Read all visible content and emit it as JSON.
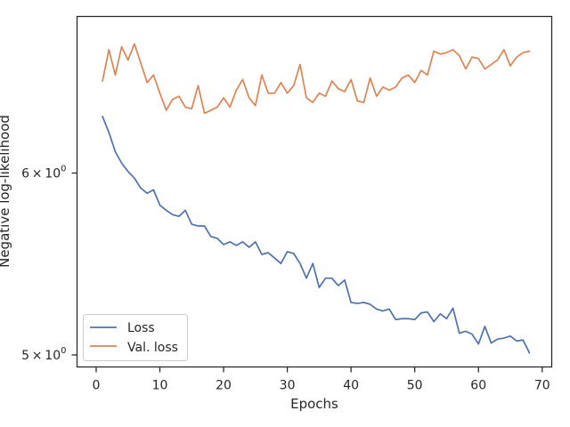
{
  "chart_data": {
    "type": "line",
    "title": "",
    "xlabel": "Epochs",
    "ylabel": "Negative log-likelihood",
    "yscale": "log",
    "xlim": [
      -3,
      71.5
    ],
    "ylim": [
      4.94,
      7.02
    ],
    "xticks": [
      0,
      10,
      20,
      30,
      40,
      50,
      60,
      70
    ],
    "xtick_labels": [
      "0",
      "10",
      "20",
      "30",
      "40",
      "50",
      "60",
      "70"
    ],
    "yticks": [
      5,
      6
    ],
    "ytick_labels": [
      {
        "base": "5",
        "times": "×",
        "sup": "0",
        "mant": "10"
      },
      {
        "base": "6",
        "times": "×",
        "sup": "0",
        "mant": "10"
      }
    ],
    "grid": false,
    "legend_position": "lower-left",
    "x": [
      1,
      2,
      3,
      4,
      5,
      6,
      7,
      8,
      9,
      10,
      11,
      12,
      13,
      14,
      15,
      16,
      17,
      18,
      19,
      20,
      21,
      22,
      23,
      24,
      25,
      26,
      27,
      28,
      29,
      30,
      31,
      32,
      33,
      34,
      35,
      36,
      37,
      38,
      39,
      40,
      41,
      42,
      43,
      44,
      45,
      46,
      47,
      48,
      49,
      50,
      51,
      52,
      53,
      54,
      55,
      56,
      57,
      58,
      59,
      60,
      61,
      62,
      63,
      64,
      65,
      66,
      67,
      68
    ],
    "series": [
      {
        "name": "Loss",
        "color": "#4c72b0",
        "values": [
          6.35,
          6.25,
          6.13,
          6.06,
          6.01,
          5.97,
          5.91,
          5.88,
          5.9,
          5.81,
          5.78,
          5.755,
          5.745,
          5.78,
          5.7,
          5.69,
          5.69,
          5.63,
          5.62,
          5.585,
          5.6,
          5.58,
          5.6,
          5.57,
          5.6,
          5.53,
          5.54,
          5.51,
          5.48,
          5.545,
          5.535,
          5.48,
          5.4,
          5.48,
          5.35,
          5.4,
          5.4,
          5.36,
          5.39,
          5.27,
          5.265,
          5.27,
          5.26,
          5.235,
          5.225,
          5.235,
          5.18,
          5.185,
          5.185,
          5.18,
          5.215,
          5.22,
          5.17,
          5.21,
          5.185,
          5.24,
          5.11,
          5.12,
          5.105,
          5.055,
          5.145,
          5.06,
          5.08,
          5.085,
          5.095,
          5.07,
          5.075,
          5.01
        ]
      },
      {
        "name": "Val. loss",
        "color": "#dd8452",
        "values": [
          6.58,
          6.79,
          6.62,
          6.81,
          6.72,
          6.83,
          6.7,
          6.57,
          6.62,
          6.5,
          6.39,
          6.46,
          6.48,
          6.41,
          6.4,
          6.55,
          6.37,
          6.39,
          6.41,
          6.47,
          6.41,
          6.52,
          6.59,
          6.47,
          6.42,
          6.62,
          6.5,
          6.5,
          6.57,
          6.5,
          6.55,
          6.69,
          6.47,
          6.44,
          6.5,
          6.48,
          6.58,
          6.53,
          6.51,
          6.59,
          6.45,
          6.44,
          6.6,
          6.48,
          6.54,
          6.52,
          6.54,
          6.6,
          6.62,
          6.57,
          6.65,
          6.62,
          6.78,
          6.76,
          6.77,
          6.79,
          6.75,
          6.66,
          6.74,
          6.73,
          6.66,
          6.69,
          6.72,
          6.79,
          6.68,
          6.74,
          6.77,
          6.78
        ]
      }
    ]
  }
}
